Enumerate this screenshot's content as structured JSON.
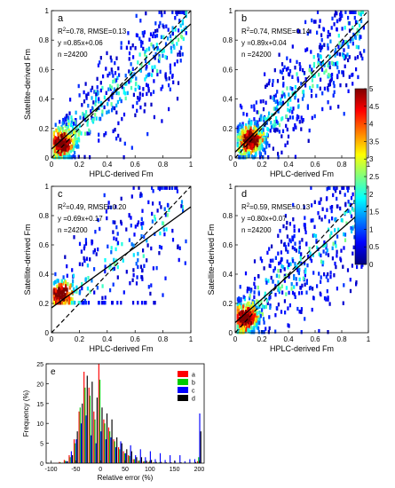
{
  "colorbar": {
    "ticks": [
      "5",
      "4.5",
      "4",
      "3.5",
      "3",
      "2.5",
      "2",
      "1.5",
      "1",
      "0.5",
      "0"
    ],
    "colors": [
      "#00007f",
      "#0000ff",
      "#007fff",
      "#00ffff",
      "#7fff7f",
      "#ffff00",
      "#ff7f00",
      "#ff0000",
      "#7f0000"
    ]
  },
  "chart_data": [
    {
      "type": "scatter",
      "panel": "a",
      "stats": [
        "R",
        "2",
        "=0.78, RMSE=0.13"
      ],
      "equation": "y =0.85x+0.06",
      "n": "n =24200",
      "xlabel": "HPLC-derived Fm",
      "ylabel": "Satellite-derived Fm",
      "xlim": [
        0,
        1
      ],
      "ylim": [
        0,
        1
      ],
      "xticks": [
        "0",
        "0.2",
        "0.4",
        "0.6",
        "0.8",
        "1"
      ],
      "yticks": [
        "0",
        "0.2",
        "0.4",
        "0.6",
        "0.8",
        "1"
      ],
      "fit": {
        "slope": 0.85,
        "intercept": 0.06
      },
      "one_to_one": true,
      "spread": 0.17,
      "y_floor": 0.0,
      "hotspot": {
        "x": 0.08,
        "y": 0.1
      },
      "point_count": 700
    },
    {
      "type": "scatter",
      "panel": "b",
      "stats": [
        "R",
        "2",
        "=0.74, RMSE=0.14"
      ],
      "equation": "y =0.89x+0.04",
      "n": "n =24200",
      "xlabel": "HPLC-derived Fm",
      "ylabel": "",
      "xlim": [
        0,
        1
      ],
      "ylim": [
        0,
        1
      ],
      "xticks": [
        "0",
        "0.2",
        "0.4",
        "0.6",
        "0.8",
        "1"
      ],
      "yticks": [
        "0",
        "0.2",
        "0.4",
        "0.6",
        "0.8",
        "1"
      ],
      "fit": {
        "slope": 0.89,
        "intercept": 0.04
      },
      "one_to_one": true,
      "spread": 0.19,
      "y_floor": 0.0,
      "hotspot": {
        "x": 0.12,
        "y": 0.12
      },
      "point_count": 800
    },
    {
      "type": "scatter",
      "panel": "c",
      "stats": [
        "R",
        "2",
        "=0.49, RMSE=0.20"
      ],
      "equation": "y =0.69x+0.17",
      "n": "n =24200",
      "xlabel": "HPLC-derived Fm",
      "ylabel": "Satellite-derived Fm",
      "xlim": [
        0,
        1
      ],
      "ylim": [
        0,
        1
      ],
      "xticks": [
        "0",
        "0.2",
        "0.4",
        "0.6",
        "0.8",
        "1"
      ],
      "yticks": [
        "0",
        "0.2",
        "0.4",
        "0.6",
        "0.8",
        "1"
      ],
      "fit": {
        "slope": 0.69,
        "intercept": 0.17
      },
      "one_to_one": true,
      "spread": 0.26,
      "y_floor": 0.2,
      "hotspot": {
        "x": 0.07,
        "y": 0.26
      },
      "point_count": 420
    },
    {
      "type": "scatter",
      "panel": "d",
      "stats": [
        "R",
        "2",
        "=0.59, RMSE=0.13"
      ],
      "equation": "y =0.80x+0.07",
      "n": "n =24200",
      "xlabel": "HPLC-derived Fm",
      "ylabel": "Satellite-derived Fm",
      "xlim": [
        0,
        1
      ],
      "ylim": [
        0,
        1
      ],
      "xticks": [
        "0",
        "0.2",
        "0.4",
        "0.6",
        "0.8",
        "1"
      ],
      "yticks": [
        "0",
        "0.2",
        "0.4",
        "0.6",
        "0.8",
        "1"
      ],
      "fit": {
        "slope": 0.8,
        "intercept": 0.07
      },
      "one_to_one": true,
      "spread": 0.22,
      "y_floor": 0.0,
      "hotspot": {
        "x": 0.08,
        "y": 0.1
      },
      "point_count": 750
    },
    {
      "type": "bar",
      "panel": "e",
      "xlabel": "Relative error (%)",
      "ylabel": "Frequency (%)",
      "xlim": [
        -110,
        210
      ],
      "ylim": [
        0,
        25
      ],
      "xticks": [
        "-100",
        "-50",
        "0",
        "50",
        "100",
        "150",
        "200"
      ],
      "xtick_values": [
        -100,
        -50,
        0,
        50,
        100,
        150,
        200
      ],
      "yticks": [
        "0",
        "5",
        "10",
        "15",
        "20",
        "25"
      ],
      "bin_width": 10,
      "categories": [
        -100,
        -90,
        -80,
        -70,
        -60,
        -50,
        -40,
        -30,
        -20,
        -10,
        0,
        10,
        20,
        30,
        40,
        50,
        60,
        70,
        80,
        90,
        100,
        110,
        120,
        130,
        140,
        150,
        160,
        170,
        180,
        190,
        200
      ],
      "series": [
        {
          "name": "a",
          "color": "#ff0000",
          "values": [
            0,
            0,
            0.3,
            0.8,
            2.0,
            6.0,
            13.0,
            23.0,
            19.0,
            13.0,
            25.0,
            11.0,
            9.0,
            6.0,
            4.0,
            3.0,
            2.0,
            1.0,
            0.6,
            0.4,
            0.3,
            0.2,
            0.1,
            0.1,
            0.1,
            0.1,
            0,
            0,
            0,
            0,
            0.5
          ]
        },
        {
          "name": "b",
          "color": "#00cc00",
          "values": [
            0,
            0,
            0.2,
            0.6,
            1.5,
            5.0,
            14.0,
            19.0,
            17.0,
            11.0,
            21.0,
            10.0,
            8.0,
            5.5,
            3.5,
            2.5,
            1.8,
            1.0,
            0.7,
            0.5,
            0.3,
            0.2,
            0.2,
            0.1,
            0.1,
            0.1,
            0.1,
            0.1,
            0.1,
            0.1,
            1.5
          ]
        },
        {
          "name": "c",
          "color": "#0000ff",
          "values": [
            0,
            0,
            0,
            0.5,
            3.0,
            6.0,
            10.0,
            12.0,
            7.0,
            5.0,
            8.0,
            6.0,
            6.5,
            4.0,
            5.5,
            2.5,
            4.5,
            2.0,
            3.5,
            1.5,
            3.0,
            1.0,
            2.5,
            0.8,
            2.0,
            0.6,
            2.0,
            0.5,
            1.0,
            1.0,
            12.5
          ]
        },
        {
          "name": "d",
          "color": "#000000",
          "values": [
            0,
            0,
            0.1,
            0.5,
            2.0,
            8.0,
            15.0,
            22.0,
            20.5,
            16.5,
            14.0,
            12.5,
            11.0,
            6.5,
            5.0,
            3.5,
            3.0,
            1.5,
            1.5,
            0.6,
            0.8,
            0.3,
            0.3,
            0.2,
            0.2,
            0.1,
            0.2,
            0.1,
            0.1,
            0.3,
            8.0
          ]
        }
      ]
    }
  ]
}
